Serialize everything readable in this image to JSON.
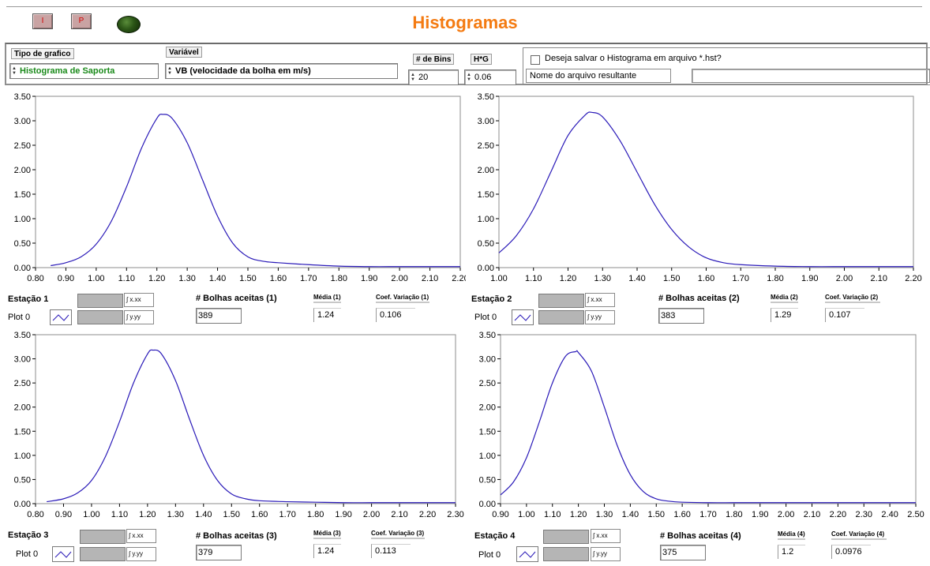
{
  "header": {
    "title": "Histogramas",
    "btn_i": "I",
    "btn_p": "P",
    "title_color": "#f47b12"
  },
  "controls": {
    "tipo_label": "Tipo de grafico",
    "tipo_value": "Histograma de Saporta",
    "tipo_value_color": "#1a8a1a",
    "variavel_label": "Variável",
    "variavel_value": "VB (velocidade da bolha em m/s)",
    "bins_label": "# de Bins",
    "bins_value": "20",
    "hg_label": "H*G",
    "hg_value": "0.06",
    "save_checkbox_label": "Deseja salvar o Histograma em arquivo *.hst?",
    "save_checked": false,
    "filename_label": "Nome do arquivo resultante",
    "filename_value": ""
  },
  "graphs": [
    {
      "station_label": "Estação 1",
      "plot_label": "Plot 0",
      "x_fmt": "x.xx",
      "y_fmt": "y.yy",
      "bolhas_label": "# Bolhas aceitas (1)",
      "bolhas_value": "389",
      "media_label": "Média (1)",
      "media_value": "1.24",
      "coef_label": "Coef. Variação (1)",
      "coef_value": "0.106"
    },
    {
      "station_label": "Estação 2",
      "plot_label": "Plot 0",
      "x_fmt": "x.xx",
      "y_fmt": "y.yy",
      "bolhas_label": "# Bolhas aceitas (2)",
      "bolhas_value": "383",
      "media_label": "Média (2)",
      "media_value": "1.29",
      "coef_label": "Coef. Variação (2)",
      "coef_value": "0.107"
    },
    {
      "station_label": "Estação 3",
      "plot_label": "Plot 0",
      "x_fmt": "x.xx",
      "y_fmt": "y.yy",
      "bolhas_label": "# Bolhas aceitas (3)",
      "bolhas_value": "379",
      "media_label": "Média (3)",
      "media_value": "1.24",
      "coef_label": "Coef. Variação (3)",
      "coef_value": "0.113"
    },
    {
      "station_label": "Estação 4",
      "plot_label": "Plot 0",
      "x_fmt": "x.xx",
      "y_fmt": "y.yy",
      "bolhas_label": "# Bolhas aceitas (4)",
      "bolhas_value": "375",
      "media_label": "Média (4)",
      "media_value": "1.2",
      "coef_label": "Coef. Variação (4)",
      "coef_value": "0.0976"
    }
  ],
  "chart_data": [
    {
      "type": "line",
      "color": "#2a1ab8",
      "xlim": [
        0.8,
        2.2
      ],
      "ylim": [
        0,
        3.5
      ],
      "xticks": [
        "0.80",
        "0.90",
        "1.00",
        "1.10",
        "1.20",
        "1.30",
        "1.40",
        "1.50",
        "1.60",
        "1.70",
        "1.80",
        "1.90",
        "2.00",
        "2.10",
        "2.20"
      ],
      "yticks": [
        "0.00",
        "0.50",
        "1.00",
        "1.50",
        "2.00",
        "2.50",
        "3.00",
        "3.50"
      ],
      "x": [
        0.85,
        0.9,
        0.95,
        1.0,
        1.05,
        1.1,
        1.15,
        1.2,
        1.22,
        1.25,
        1.3,
        1.35,
        1.4,
        1.45,
        1.5,
        1.55,
        1.6,
        1.7,
        1.8,
        1.9,
        2.0,
        2.1,
        2.2
      ],
      "y": [
        0.04,
        0.1,
        0.22,
        0.48,
        0.95,
        1.65,
        2.45,
        3.05,
        3.13,
        3.05,
        2.55,
        1.8,
        1.05,
        0.5,
        0.22,
        0.13,
        0.1,
        0.06,
        0.03,
        0.02,
        0.02,
        0.02,
        0.02
      ]
    },
    {
      "type": "line",
      "color": "#2a1ab8",
      "xlim": [
        1.0,
        2.2
      ],
      "ylim": [
        0,
        3.5
      ],
      "xticks": [
        "1.00",
        "1.10",
        "1.20",
        "1.30",
        "1.40",
        "1.50",
        "1.60",
        "1.70",
        "1.80",
        "1.90",
        "2.00",
        "2.10",
        "2.20"
      ],
      "yticks": [
        "0.00",
        "0.50",
        "1.00",
        "1.50",
        "2.00",
        "2.50",
        "3.00",
        "3.50"
      ],
      "x": [
        1.0,
        1.05,
        1.1,
        1.15,
        1.2,
        1.25,
        1.27,
        1.3,
        1.35,
        1.4,
        1.45,
        1.5,
        1.55,
        1.6,
        1.65,
        1.7,
        1.8,
        1.9,
        2.0,
        2.1,
        2.2
      ],
      "y": [
        0.3,
        0.65,
        1.2,
        1.95,
        2.7,
        3.12,
        3.17,
        3.08,
        2.6,
        1.95,
        1.3,
        0.78,
        0.42,
        0.2,
        0.1,
        0.06,
        0.03,
        0.02,
        0.02,
        0.02,
        0.02
      ]
    },
    {
      "type": "line",
      "color": "#2a1ab8",
      "xlim": [
        0.8,
        2.3
      ],
      "ylim": [
        0,
        3.5
      ],
      "xticks": [
        "0.80",
        "0.90",
        "1.00",
        "1.10",
        "1.20",
        "1.30",
        "1.40",
        "1.50",
        "1.60",
        "1.70",
        "1.80",
        "1.90",
        "2.00",
        "2.10",
        "2.20",
        "2.30"
      ],
      "yticks": [
        "0.00",
        "0.50",
        "1.00",
        "1.50",
        "2.00",
        "2.50",
        "3.00",
        "3.50"
      ],
      "x": [
        0.84,
        0.9,
        0.95,
        1.0,
        1.05,
        1.1,
        1.15,
        1.2,
        1.22,
        1.25,
        1.3,
        1.35,
        1.4,
        1.45,
        1.5,
        1.55,
        1.6,
        1.7,
        1.8,
        1.9,
        2.0,
        2.1,
        2.2,
        2.3
      ],
      "y": [
        0.04,
        0.1,
        0.22,
        0.48,
        0.98,
        1.7,
        2.5,
        3.1,
        3.18,
        3.1,
        2.55,
        1.75,
        1.0,
        0.48,
        0.2,
        0.1,
        0.06,
        0.04,
        0.03,
        0.02,
        0.02,
        0.02,
        0.02,
        0.02
      ]
    },
    {
      "type": "line",
      "color": "#2a1ab8",
      "xlim": [
        0.9,
        2.5
      ],
      "ylim": [
        0,
        3.5
      ],
      "xticks": [
        "0.90",
        "1.00",
        "1.10",
        "1.20",
        "1.30",
        "1.40",
        "1.50",
        "1.60",
        "1.70",
        "1.80",
        "1.90",
        "2.00",
        "2.10",
        "2.20",
        "2.30",
        "2.40",
        "2.50"
      ],
      "yticks": [
        "0.00",
        "0.50",
        "1.00",
        "1.50",
        "2.00",
        "2.50",
        "3.00",
        "3.50"
      ],
      "x": [
        0.9,
        0.95,
        1.0,
        1.05,
        1.1,
        1.15,
        1.19,
        1.2,
        1.25,
        1.3,
        1.35,
        1.4,
        1.45,
        1.5,
        1.55,
        1.6,
        1.7,
        1.8,
        1.9,
        2.0,
        2.1,
        2.2,
        2.3,
        2.4,
        2.5
      ],
      "y": [
        0.18,
        0.45,
        0.95,
        1.7,
        2.5,
        3.05,
        3.15,
        3.13,
        2.75,
        2.0,
        1.2,
        0.6,
        0.25,
        0.1,
        0.05,
        0.03,
        0.02,
        0.02,
        0.02,
        0.02,
        0.02,
        0.02,
        0.02,
        0.02,
        0.02
      ]
    }
  ]
}
